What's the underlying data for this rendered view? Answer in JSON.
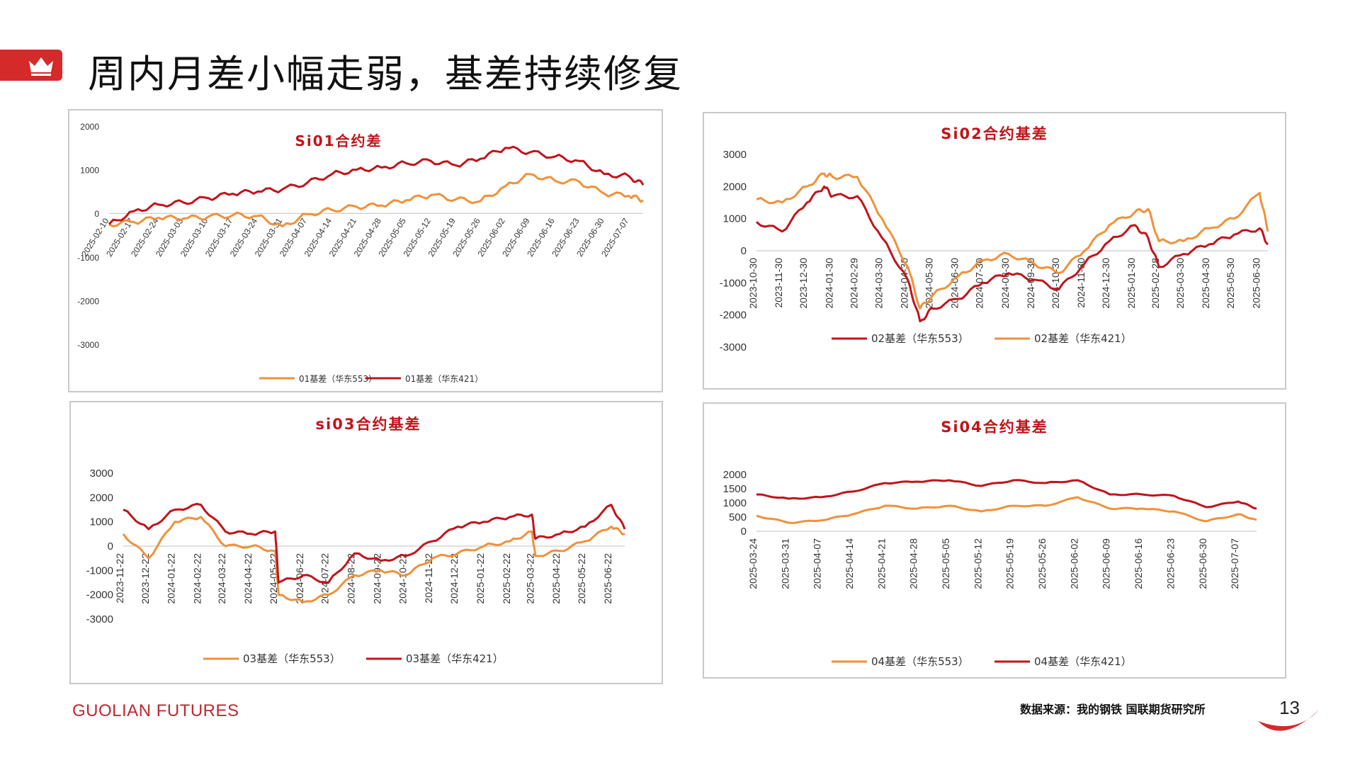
{
  "slide": {
    "title": "周内月差小幅走弱，基差持续修复",
    "brand": "GUOLIAN FUTURES",
    "source": "数据来源：我的钢铁 国联期货研究所",
    "page": "13",
    "brand_color": "#d42a2a"
  },
  "chart_data": [
    {
      "id": "c1",
      "type": "line",
      "title": "Si01合约差",
      "yticks": [
        2000,
        1000,
        0,
        -1000,
        -2000,
        -3000
      ],
      "ylim": [
        -3000,
        2000
      ],
      "grid": false,
      "legend": "bottom",
      "x_tick_labels": [
        "2025-02-10",
        "2025-02-17",
        "2025-02-24",
        "2025-03-03",
        "2025-03-10",
        "2025-03-17",
        "2025-03-24",
        "2025-03-31",
        "2025-04-07",
        "2025-04-14",
        "2025-04-21",
        "2025-04-28",
        "2025-05-05",
        "2025-05-12",
        "2025-05-19",
        "2025-05-26",
        "2025-06-02",
        "2025-06-09",
        "2025-06-16",
        "2025-06-23",
        "2025-06-30",
        "2025-07-07"
      ],
      "x": [
        "2025-02-10",
        "2025-02-17",
        "2025-02-24",
        "2025-03-03",
        "2025-03-10",
        "2025-03-17",
        "2025-03-24",
        "2025-03-31",
        "2025-04-07",
        "2025-04-14",
        "2025-04-21",
        "2025-04-28",
        "2025-05-05",
        "2025-05-12",
        "2025-05-19",
        "2025-05-26",
        "2025-06-02",
        "2025-06-09",
        "2025-06-16",
        "2025-06-23",
        "2025-06-30",
        "2025-07-07",
        "2025-07-11"
      ],
      "series": [
        {
          "name": "01基差（华东553）",
          "color": "#f0913a",
          "values": [
            -250,
            -200,
            -100,
            -120,
            -80,
            -40,
            -60,
            -300,
            -20,
            80,
            150,
            180,
            300,
            420,
            320,
            280,
            620,
            900,
            750,
            720,
            450,
            400,
            300
          ]
        },
        {
          "name": "01基差（华东421）",
          "color": "#c0141b",
          "values": [
            -250,
            50,
            200,
            250,
            350,
            450,
            500,
            550,
            700,
            900,
            1000,
            1050,
            1150,
            1200,
            1100,
            1250,
            1500,
            1400,
            1300,
            1200,
            900,
            850,
            650
          ]
        }
      ]
    },
    {
      "id": "c2",
      "type": "line",
      "title": "Si02合约基差",
      "yticks": [
        3000,
        2000,
        1000,
        0,
        -1000,
        -2000,
        -3000
      ],
      "ylim": [
        -3000,
        3000
      ],
      "grid": false,
      "legend": "bottom",
      "x_tick_labels": [
        "2023-10-30",
        "2023-11-30",
        "2023-12-30",
        "2024-01-30",
        "2024-02-29",
        "2024-03-30",
        "2024-04-30",
        "2024-05-30",
        "2024-06-30",
        "2024-07-30",
        "2024-08-30",
        "2024-09-30",
        "2024-10-30",
        "2024-11-30",
        "2024-12-30",
        "2025-01-30",
        "2025-02-28",
        "2025-03-30",
        "2025-04-30",
        "2025-05-30",
        "2025-06-30"
      ],
      "x": [
        "2023-10-30",
        "2023-11-30",
        "2023-12-30",
        "2024-01-20",
        "2024-01-30",
        "2024-02-29",
        "2024-03-30",
        "2024-04-30",
        "2024-05-15",
        "2024-05-30",
        "2024-06-30",
        "2024-07-30",
        "2024-08-30",
        "2024-09-30",
        "2024-10-30",
        "2024-11-30",
        "2024-12-30",
        "2025-01-30",
        "2025-02-15",
        "2025-02-28",
        "2025-03-30",
        "2025-04-30",
        "2025-05-30",
        "2025-06-30",
        "2025-07-10"
      ],
      "series": [
        {
          "name": "02基差（华东553）",
          "color": "#c0141b",
          "values": [
            900,
            600,
            1500,
            2000,
            1700,
            1700,
            400,
            -900,
            -2200,
            -1800,
            -1500,
            -1000,
            -700,
            -900,
            -1200,
            -400,
            300,
            800,
            400,
            -500,
            -100,
            200,
            500,
            700,
            200
          ]
        },
        {
          "name": "02基差（华东421）",
          "color": "#f0913a",
          "values": [
            1600,
            1500,
            2000,
            2400,
            2300,
            2300,
            1000,
            -500,
            -1800,
            -1400,
            -800,
            -300,
            -100,
            -400,
            -700,
            0,
            800,
            1200,
            1300,
            300,
            300,
            700,
            1000,
            1800,
            600
          ]
        }
      ]
    },
    {
      "id": "c3",
      "type": "line",
      "title": "si03合约基差",
      "yticks": [
        3000,
        2000,
        1000,
        0,
        -1000,
        -2000,
        -3000
      ],
      "ylim": [
        -3000,
        3000
      ],
      "grid": false,
      "legend": "bottom",
      "x_tick_labels": [
        "2023-11-22",
        "2023-12-22",
        "2024-01-22",
        "2024-02-22",
        "2024-03-22",
        "2024-04-22",
        "2024-05-22",
        "2024-06-22",
        "2024-07-22",
        "2024-08-22",
        "2024-09-22",
        "2024-10-22",
        "2024-11-22",
        "2024-12-22",
        "2025-01-22",
        "2025-02-22",
        "2025-03-22",
        "2025-04-22",
        "2025-05-22",
        "2025-06-22"
      ],
      "x": [
        "2023-11-22",
        "2023-12-22",
        "2024-01-22",
        "2024-02-22",
        "2024-03-22",
        "2024-04-22",
        "2024-05-20",
        "2024-05-24",
        "2024-06-22",
        "2024-07-22",
        "2024-08-22",
        "2024-09-22",
        "2024-10-22",
        "2024-11-22",
        "2024-12-22",
        "2025-01-22",
        "2025-02-22",
        "2025-03-20",
        "2025-03-24",
        "2025-04-22",
        "2025-05-22",
        "2025-06-22",
        "2025-07-08"
      ],
      "series": [
        {
          "name": "03基差（华东553）",
          "color": "#f0913a",
          "values": [
            500,
            -500,
            1000,
            1200,
            0,
            0,
            -200,
            -2000,
            -2300,
            -2000,
            -1200,
            -1000,
            -1200,
            -500,
            -300,
            0,
            200,
            600,
            -400,
            -200,
            200,
            800,
            500
          ]
        },
        {
          "name": "03基差（华东421）",
          "color": "#c0141b",
          "values": [
            1500,
            700,
            1500,
            1700,
            600,
            500,
            600,
            -1500,
            -1200,
            -1500,
            -300,
            -600,
            -400,
            200,
            800,
            1000,
            1200,
            1300,
            300,
            500,
            800,
            1700,
            700
          ]
        }
      ]
    },
    {
      "id": "c4",
      "type": "line",
      "title": "Si04合约基差",
      "yticks": [
        2000,
        1500,
        1000,
        500,
        0
      ],
      "ylim": [
        0,
        2000
      ],
      "grid": false,
      "legend": "bottom",
      "x_tick_labels": [
        "2025-03-24",
        "2025-03-31",
        "2025-04-07",
        "2025-04-14",
        "2025-04-21",
        "2025-04-28",
        "2025-05-05",
        "2025-05-12",
        "2025-05-19",
        "2025-05-26",
        "2025-06-02",
        "2025-06-09",
        "2025-06-16",
        "2025-06-23",
        "2025-06-30",
        "2025-07-07"
      ],
      "x": [
        "2025-03-24",
        "2025-03-31",
        "2025-04-07",
        "2025-04-14",
        "2025-04-21",
        "2025-04-28",
        "2025-05-05",
        "2025-05-12",
        "2025-05-19",
        "2025-05-26",
        "2025-06-02",
        "2025-06-09",
        "2025-06-16",
        "2025-06-23",
        "2025-06-30",
        "2025-07-07",
        "2025-07-11"
      ],
      "series": [
        {
          "name": "04基差（华东553）",
          "color": "#f0913a",
          "values": [
            550,
            300,
            380,
            600,
            900,
            800,
            900,
            700,
            900,
            900,
            1200,
            800,
            800,
            700,
            350,
            600,
            400
          ]
        },
        {
          "name": "04基差（华东421）",
          "color": "#c0141b",
          "values": [
            1300,
            1150,
            1200,
            1400,
            1700,
            1750,
            1800,
            1600,
            1800,
            1700,
            1800,
            1300,
            1300,
            1250,
            850,
            1050,
            800
          ]
        }
      ]
    }
  ]
}
